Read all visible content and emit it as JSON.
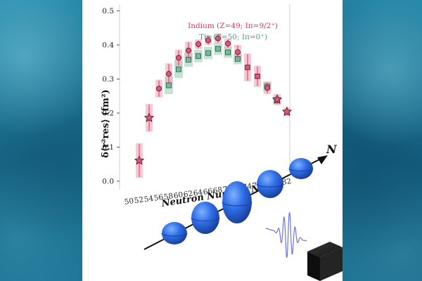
{
  "chart_data": {
    "type": "scatter",
    "title": "",
    "xlabel": "Neutron Number N",
    "ylabel": "δ⟨r²res⟩ (fm²)",
    "categories": [
      50,
      52,
      54,
      56,
      58,
      60,
      62,
      64,
      66,
      68,
      70,
      72,
      74,
      76,
      78,
      80,
      82
    ],
    "ylim": [
      -0.02,
      0.52
    ],
    "yticks": [
      "0.0",
      "0.1",
      "0.2",
      "0.3",
      "0.4",
      "0.5"
    ],
    "legend_position": "top-right",
    "series": [
      {
        "name": "Indium (Z=49; Iπ=9/2⁺)",
        "color": "#d8345f",
        "points": [
          {
            "n": 52,
            "y": 0.062,
            "err": 0.045,
            "marker": "star"
          },
          {
            "n": 54,
            "y": 0.185,
            "err": 0.035,
            "marker": "star"
          },
          {
            "n": 56,
            "y": 0.268,
            "err": 0.02,
            "marker": "circle"
          },
          {
            "n": 58,
            "y": 0.308,
            "err": 0.025,
            "marker": "circle"
          },
          {
            "n": 60,
            "y": 0.352,
            "err": 0.018,
            "marker": "circle"
          },
          {
            "n": 62,
            "y": 0.37,
            "err": 0.02,
            "marker": "circle"
          },
          {
            "n": 64,
            "y": 0.385,
            "err": 0.008,
            "marker": "circle"
          },
          {
            "n": 66,
            "y": 0.393,
            "err": 0.008,
            "marker": "circle"
          },
          {
            "n": 68,
            "y": 0.395,
            "err": 0.008,
            "marker": "circle"
          },
          {
            "n": 70,
            "y": 0.376,
            "err": 0.008,
            "marker": "circle"
          },
          {
            "n": 72,
            "y": 0.347,
            "err": 0.015,
            "marker": "circle"
          },
          {
            "n": 74,
            "y": 0.298,
            "err": 0.035,
            "marker": "square"
          },
          {
            "n": 76,
            "y": 0.268,
            "err": 0.025,
            "marker": "square"
          },
          {
            "n": 78,
            "y": 0.23,
            "err": 0.012,
            "marker": "circle"
          },
          {
            "n": 80,
            "y": 0.192,
            "err": 0.01,
            "marker": "star"
          },
          {
            "n": 82,
            "y": 0.152,
            "err": 0.006,
            "marker": "star"
          }
        ]
      },
      {
        "name": "Tin (Z=50; Iπ=0⁺)",
        "color": "#4a9a7a",
        "points": [
          {
            "n": 58,
            "y": 0.274,
            "err": 0.02
          },
          {
            "n": 60,
            "y": 0.318,
            "err": 0.02
          },
          {
            "n": 62,
            "y": 0.343,
            "err": 0.015
          },
          {
            "n": 64,
            "y": 0.35,
            "err": 0.012
          },
          {
            "n": 66,
            "y": 0.355,
            "err": 0.012
          },
          {
            "n": 68,
            "y": 0.364,
            "err": 0.012
          },
          {
            "n": 70,
            "y": 0.35,
            "err": 0.01
          },
          {
            "n": 72,
            "y": 0.327,
            "err": 0.01
          },
          {
            "n": 78,
            "y": 0.234,
            "err": 0.008
          },
          {
            "n": 80,
            "y": 0.19,
            "err": 0.006
          }
        ]
      }
    ]
  },
  "illustration": {
    "axis_label": "N",
    "nucleus_color": "#2a5fd8",
    "wave_color": "#6d74e0",
    "detector_color": "#1b1b1b"
  }
}
